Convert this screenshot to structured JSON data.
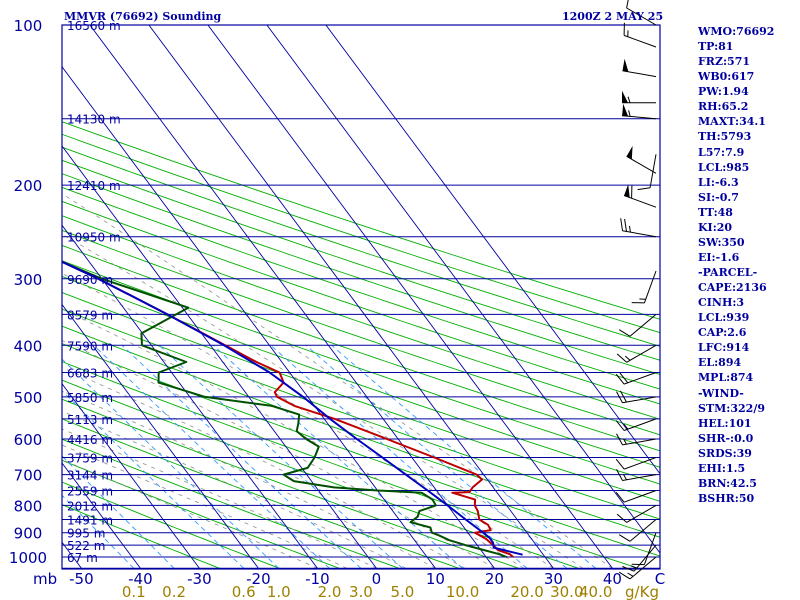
{
  "header": {
    "station": "MMVR (76692) Sounding",
    "time": "1200Z  2 MAY 25"
  },
  "indices": [
    "WMO:76692",
    "TP:81",
    "FRZ:571",
    "WB0:617",
    "PW:1.94",
    "RH:65.2",
    "MAXT:34.1",
    "TH:5793",
    "L57:7.9",
    "LCL:985",
    "LI:-6.3",
    "SI:-0.7",
    "TT:48",
    "KI:20",
    "SW:350",
    "EI:-1.6",
    "-PARCEL-",
    "CAPE:2136",
    "CINH:3",
    "LCL:939",
    "CAP:2.6",
    "LFC:914",
    "EL:894",
    "MPL:874",
    "-WIND-",
    "STM:322/9",
    "HEL:101",
    "SHR-:0.0",
    "SRDS:39",
    "EHI:1.5",
    "BRN:42.5",
    "BSHR:50"
  ],
  "colors": {
    "border": "#0000a0",
    "isobar": "#0000a0",
    "isotherm": "#0000a0",
    "dry_adiabat": "#00b000",
    "moist_adiabat": "#909090",
    "mixing_ratio": "#3399ff",
    "temperature": "#c00000",
    "dewpoint": "#005000",
    "parcel": "#0000c0",
    "axis_text": "#0000a0",
    "mixratio_text": "#a08000",
    "wind": "#000000"
  },
  "chart_data": {
    "type": "skew-t",
    "x_axis": {
      "unit_label": "C",
      "temperature_ticks": [
        -50,
        -40,
        -30,
        -20,
        -10,
        0,
        10,
        20,
        30,
        40
      ],
      "tick_labels": [
        "-50",
        "-40",
        "-30",
        "-20",
        "-10",
        "0",
        "10",
        "20",
        "30",
        "40"
      ],
      "range": [
        -60,
        50
      ]
    },
    "y_axis": {
      "unit_label": "mb",
      "pressure_labels": [
        100,
        200,
        300,
        400,
        500,
        600,
        700,
        800,
        900,
        1000
      ],
      "range": [
        100,
        1050
      ],
      "scale": "log"
    },
    "mixing_ratio_axis": {
      "unit_label": "g/Kg",
      "values": [
        0.1,
        0.2,
        0.6,
        1.0,
        2.0,
        3.0,
        5.0,
        10.0,
        20.0,
        30.0,
        40.0
      ],
      "labels": [
        "0.1",
        "0.2",
        "0.6",
        "1.0",
        "2.0",
        "3.0",
        "5.0",
        "10.0",
        "20.0",
        "30.0",
        "40.0"
      ]
    },
    "heights": [
      {
        "p": 100,
        "label": "16560 m"
      },
      {
        "p": 150,
        "label": "14130 m"
      },
      {
        "p": 200,
        "label": "12410 m"
      },
      {
        "p": 250,
        "label": "10950 m"
      },
      {
        "p": 300,
        "label": "9690 m"
      },
      {
        "p": 350,
        "label": "8579 m"
      },
      {
        "p": 400,
        "label": "7590 m"
      },
      {
        "p": 450,
        "label": "6683 m"
      },
      {
        "p": 500,
        "label": "5850 m"
      },
      {
        "p": 550,
        "label": "5113 m"
      },
      {
        "p": 600,
        "label": "4416 m"
      },
      {
        "p": 650,
        "label": "3759 m"
      },
      {
        "p": 700,
        "label": "3144 m"
      },
      {
        "p": 750,
        "label": "2559 m"
      },
      {
        "p": 800,
        "label": "2012 m"
      },
      {
        "p": 850,
        "label": "1491 m"
      },
      {
        "p": 900,
        "label": "995 m"
      },
      {
        "p": 950,
        "label": "522 m"
      },
      {
        "p": 1000,
        "label": "67 m"
      }
    ],
    "series": [
      {
        "key": "temperature",
        "points": [
          [
            1000,
            24.6
          ],
          [
            988,
            24.4
          ],
          [
            970,
            22.9
          ],
          [
            950,
            22.7
          ],
          [
            925,
            22.3
          ],
          [
            900,
            21.2
          ],
          [
            890,
            24.2
          ],
          [
            870,
            24.4
          ],
          [
            850,
            23.6
          ],
          [
            820,
            24.4
          ],
          [
            800,
            24.6
          ],
          [
            780,
            25.4
          ],
          [
            757,
            22.4
          ],
          [
            755,
            25.4
          ],
          [
            740,
            26.5
          ],
          [
            715,
            29.1
          ],
          [
            700,
            28.8
          ],
          [
            650,
            23.8
          ],
          [
            600,
            18.1
          ],
          [
            550,
            11.8
          ],
          [
            520,
            6.6
          ],
          [
            500,
            4.8
          ],
          [
            490,
            5.0
          ],
          [
            470,
            7.7
          ],
          [
            450,
            8.3
          ],
          [
            430,
            5.7
          ],
          [
            400,
            2.5
          ],
          [
            350,
            -3.4
          ],
          [
            300,
            -10.6
          ],
          [
            250,
            -20.5
          ],
          [
            200,
            -33.3
          ],
          [
            175,
            -41.4
          ],
          [
            150,
            -51.2
          ],
          [
            130,
            -58.4
          ],
          [
            120,
            -59.3
          ],
          [
            110,
            -56.0
          ],
          [
            100,
            -52.0
          ]
        ]
      },
      {
        "key": "dewpoint",
        "points": [
          [
            1000,
            23.5
          ],
          [
            988,
            22.6
          ],
          [
            970,
            20.5
          ],
          [
            950,
            18.0
          ],
          [
            930,
            15.9
          ],
          [
            910,
            14.7
          ],
          [
            900,
            13.9
          ],
          [
            880,
            14.3
          ],
          [
            860,
            11.6
          ],
          [
            840,
            13.5
          ],
          [
            820,
            14.5
          ],
          [
            800,
            18.0
          ],
          [
            780,
            18.2
          ],
          [
            757,
            17.2
          ],
          [
            750,
            10.0
          ],
          [
            740,
            3.0
          ],
          [
            720,
            -3.0
          ],
          [
            700,
            -3.9
          ],
          [
            680,
            1.0
          ],
          [
            650,
            3.5
          ],
          [
            620,
            5.6
          ],
          [
            600,
            4.4
          ],
          [
            580,
            3.8
          ],
          [
            560,
            5.1
          ],
          [
            540,
            6.3
          ],
          [
            520,
            2.8
          ],
          [
            500,
            -7.4
          ],
          [
            470,
            -13.5
          ],
          [
            450,
            -12.2
          ],
          [
            430,
            -6.2
          ],
          [
            400,
            -11.6
          ],
          [
            380,
            -10.2
          ],
          [
            340,
            1.0
          ],
          [
            300,
            -10.0
          ],
          [
            250,
            -21.5
          ],
          [
            200,
            -38.0
          ],
          [
            180,
            -37.5
          ],
          [
            150,
            -38.3
          ],
          [
            120,
            -38.5
          ],
          [
            105,
            -37.0
          ],
          [
            100,
            -36.5
          ]
        ]
      },
      {
        "key": "parcel",
        "points": [
          [
            990,
            26.5
          ],
          [
            975,
            24.5
          ],
          [
            960,
            22.5
          ],
          [
            940,
            23.0
          ],
          [
            920,
            23.0
          ],
          [
            900,
            22.6
          ],
          [
            850,
            21.3
          ],
          [
            800,
            20.0
          ],
          [
            750,
            18.5
          ],
          [
            700,
            16.8
          ],
          [
            650,
            15.0
          ],
          [
            600,
            13.0
          ],
          [
            550,
            11.0
          ],
          [
            500,
            9.2
          ],
          [
            450,
            6.6
          ],
          [
            400,
            2.3
          ],
          [
            350,
            -3.4
          ],
          [
            300,
            -10.6
          ],
          [
            250,
            -20.5
          ],
          [
            200,
            -31.6
          ],
          [
            175,
            -40.0
          ],
          [
            150,
            -50.2
          ],
          [
            125,
            -62.3
          ],
          [
            110,
            -70.0
          ],
          [
            100,
            -75.0
          ]
        ]
      }
    ],
    "wind_barbs": [
      {
        "p": 100,
        "dir": 300,
        "kt": 10
      },
      {
        "p": 110,
        "dir": 290,
        "kt": 15
      },
      {
        "p": 125,
        "dir": 280,
        "kt": 50
      },
      {
        "p": 140,
        "dir": 270,
        "kt": 55
      },
      {
        "p": 150,
        "dir": 275,
        "kt": 55
      },
      {
        "p": 175,
        "dir": 190,
        "kt": 10
      },
      {
        "p": 190,
        "dir": 300,
        "kt": 50
      },
      {
        "p": 220,
        "dir": 290,
        "kt": 60
      },
      {
        "p": 250,
        "dir": 280,
        "kt": 25
      },
      {
        "p": 290,
        "dir": 200,
        "kt": 15
      },
      {
        "p": 350,
        "dir": 230,
        "kt": 10
      },
      {
        "p": 400,
        "dir": 240,
        "kt": 15
      },
      {
        "p": 450,
        "dir": 250,
        "kt": 20
      },
      {
        "p": 500,
        "dir": 260,
        "kt": 20
      },
      {
        "p": 550,
        "dir": 250,
        "kt": 15
      },
      {
        "p": 600,
        "dir": 260,
        "kt": 15
      },
      {
        "p": 650,
        "dir": 250,
        "kt": 10
      },
      {
        "p": 700,
        "dir": 260,
        "kt": 15
      },
      {
        "p": 750,
        "dir": 250,
        "kt": 10
      },
      {
        "p": 800,
        "dir": 240,
        "kt": 10
      },
      {
        "p": 850,
        "dir": 230,
        "kt": 10
      },
      {
        "p": 900,
        "dir": 200,
        "kt": 10
      },
      {
        "p": 950,
        "dir": 220,
        "kt": 15
      },
      {
        "p": 1000,
        "dir": 230,
        "kt": 15
      }
    ]
  }
}
